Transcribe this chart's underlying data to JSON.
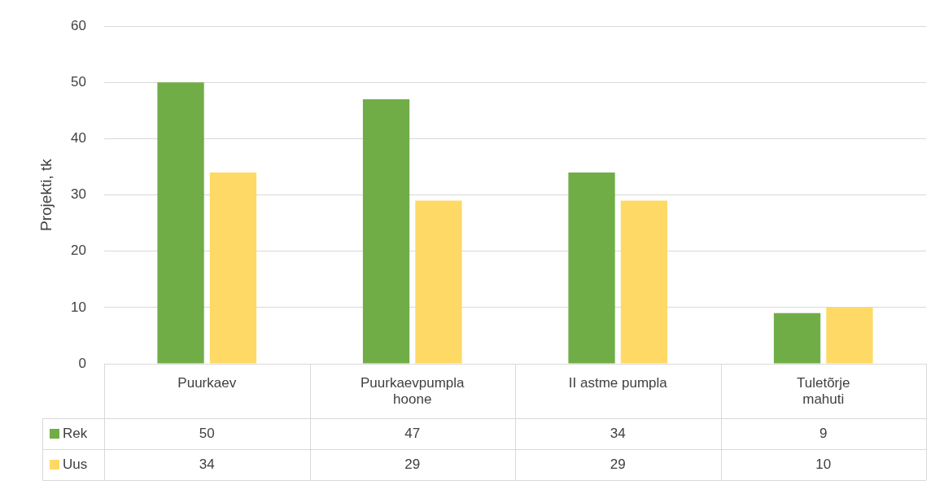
{
  "chart_data": {
    "type": "bar",
    "ylabel": "Projekti, tk",
    "categories": [
      "Puurkaev",
      "Puurkaevpumpla hoone",
      "II astme pumpla",
      "Tuletõrje mahuti"
    ],
    "series": [
      {
        "name": "Rek",
        "color": "#70ad47",
        "values": [
          50,
          47,
          34,
          9
        ]
      },
      {
        "name": "Uus",
        "color": "#ffd966",
        "values": [
          34,
          29,
          29,
          10
        ]
      }
    ],
    "ylim": [
      0,
      60
    ],
    "yticks": [
      0,
      10,
      20,
      30,
      40,
      50,
      60
    ],
    "grid": "y",
    "legend": "bottom",
    "data_labels": true
  }
}
